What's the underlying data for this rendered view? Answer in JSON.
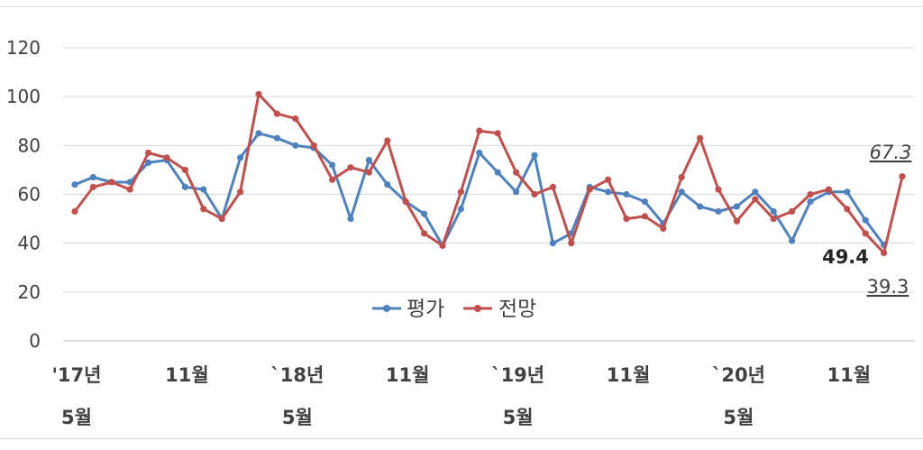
{
  "chart_data": {
    "type": "line",
    "ylim": [
      0,
      120
    ],
    "yticks": [
      0,
      20,
      40,
      60,
      80,
      100,
      120
    ],
    "grid": true,
    "legend_position": "bottom-center",
    "x_labels": [
      {
        "index": 0,
        "line1": "'17년",
        "line2": "5월"
      },
      {
        "index": 6,
        "line1": "11월",
        "line2": ""
      },
      {
        "index": 12,
        "line1": "`18년",
        "line2": "5월"
      },
      {
        "index": 18,
        "line1": "11월",
        "line2": ""
      },
      {
        "index": 24,
        "line1": "`19년",
        "line2": "5월"
      },
      {
        "index": 30,
        "line1": "11월",
        "line2": ""
      },
      {
        "index": 36,
        "line1": "`20년",
        "line2": "5월"
      },
      {
        "index": 42,
        "line1": "11월",
        "line2": ""
      }
    ],
    "series": [
      {
        "name": "평가",
        "color": "#4f81bd",
        "values": [
          64,
          67,
          65,
          65,
          73,
          74,
          63,
          62,
          50,
          75,
          85,
          83,
          80,
          79,
          72,
          50,
          74,
          64,
          57,
          52,
          39,
          54,
          77,
          69,
          61,
          76,
          40,
          44,
          63,
          61,
          60,
          57,
          48,
          61,
          55,
          53,
          55,
          61,
          53,
          41,
          57,
          61,
          61,
          49.4,
          39.3
        ]
      },
      {
        "name": "전망",
        "color": "#c0504d",
        "values": [
          53,
          63,
          65,
          62,
          77,
          75,
          70,
          54,
          50,
          61,
          101,
          93,
          91,
          80,
          66,
          71,
          69,
          82,
          57,
          44,
          39,
          61,
          86,
          85,
          69,
          60,
          63,
          40,
          62,
          66,
          50,
          51,
          46,
          67,
          83,
          62,
          49,
          58,
          50,
          53,
          60,
          62,
          54,
          44,
          36,
          67.3
        ]
      }
    ],
    "annotations": [
      {
        "text": "67.3",
        "style": "italic-underline"
      },
      {
        "text": "49.4",
        "style": "bold"
      },
      {
        "text": "39.3",
        "style": "underline"
      }
    ]
  }
}
